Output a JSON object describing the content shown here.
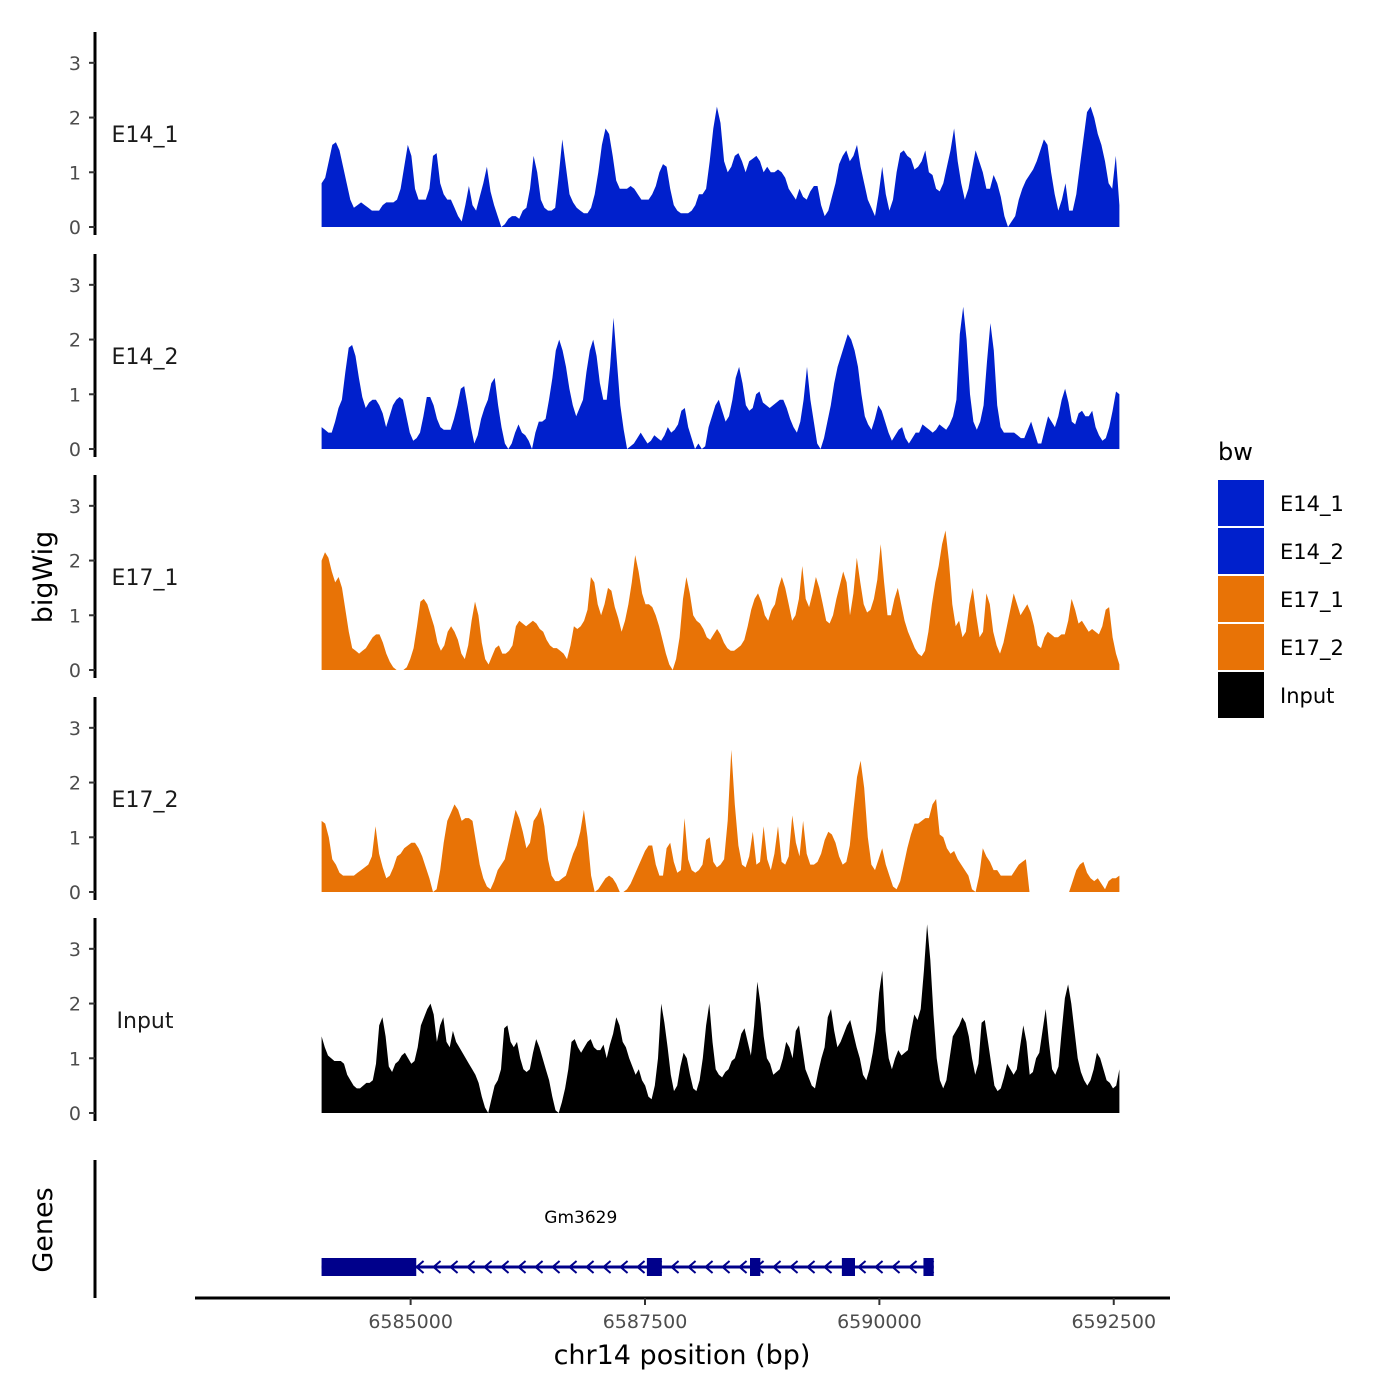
{
  "chart_data": {
    "type": "area",
    "chromosome": "chr14",
    "region": [
      6584050,
      6592560
    ],
    "xlabel": "chr14 position (bp)",
    "ylabel_signal": "bigWig",
    "ylabel_genes": "Genes",
    "x_ticks": [
      6585000,
      6587500,
      6590000,
      6592500
    ],
    "x_tick_labels": [
      "6585000",
      "6587500",
      "6590000",
      "6592500"
    ],
    "x_domain": [
      6582700,
      6593100
    ],
    "ylim": [
      0,
      3.6
    ],
    "y_ticks": [
      0,
      1,
      2,
      3
    ],
    "y_tick_labels": [
      "0",
      "1",
      "2",
      "3"
    ],
    "legend": {
      "title": "bw",
      "entries": [
        {
          "name": "E14_1",
          "color": "#0020CC"
        },
        {
          "name": "E14_2",
          "color": "#0020CC"
        },
        {
          "name": "E17_1",
          "color": "#E87306"
        },
        {
          "name": "E17_2",
          "color": "#E87306"
        },
        {
          "name": "Input",
          "color": "#000000"
        }
      ]
    },
    "series": [
      {
        "name": "E14_1",
        "color": "#0020CC",
        "values": [
          0.8,
          0.9,
          1.2,
          1.5,
          1.55,
          1.4,
          1.1,
          0.8,
          0.5,
          0.35,
          0.4,
          0.45,
          0.4,
          0.35,
          0.3,
          0.3,
          0.3,
          0.4,
          0.45,
          0.45,
          0.45,
          0.5,
          0.7,
          1.1,
          1.5,
          1.3,
          0.7,
          0.5,
          0.5,
          0.5,
          0.7,
          1.3,
          1.35,
          0.8,
          0.6,
          0.5,
          0.5,
          0.35,
          0.2,
          0.1,
          0.4,
          0.75,
          0.4,
          0.3,
          0.55,
          0.8,
          1.1,
          0.65,
          0.4,
          0.2,
          0.0,
          0.05,
          0.15,
          0.2,
          0.2,
          0.15,
          0.3,
          0.35,
          0.7,
          1.3,
          1.0,
          0.5,
          0.35,
          0.3,
          0.3,
          0.35,
          0.95,
          1.6,
          1.1,
          0.6,
          0.45,
          0.35,
          0.3,
          0.25,
          0.25,
          0.35,
          0.6,
          1.0,
          1.5,
          1.8,
          1.7,
          1.3,
          0.85,
          0.7,
          0.7,
          0.7,
          0.75,
          0.7,
          0.6,
          0.5,
          0.5,
          0.5,
          0.6,
          0.75,
          1.0,
          1.15,
          1.1,
          0.7,
          0.4,
          0.3,
          0.25,
          0.25,
          0.25,
          0.3,
          0.4,
          0.6,
          0.6,
          0.7,
          1.2,
          1.8,
          2.2,
          1.9,
          1.2,
          1.0,
          1.1,
          1.3,
          1.35,
          1.2,
          1.0,
          1.2,
          1.25,
          1.3,
          1.2,
          1.0,
          1.1,
          1.0,
          1.0,
          1.05,
          1.0,
          0.9,
          0.7,
          0.6,
          0.5,
          0.7,
          0.55,
          0.5,
          0.65,
          0.75,
          0.75,
          0.4,
          0.2,
          0.3,
          0.55,
          0.8,
          1.15,
          1.3,
          1.4,
          1.2,
          1.3,
          1.5,
          1.1,
          0.8,
          0.5,
          0.35,
          0.2,
          0.6,
          1.1,
          0.6,
          0.3,
          0.5,
          1.0,
          1.35,
          1.4,
          1.3,
          1.25,
          1.05,
          1.1,
          1.2,
          1.4,
          1.0,
          0.95,
          0.7,
          0.65,
          0.8,
          1.1,
          1.4,
          1.8,
          1.2,
          0.8,
          0.5,
          0.7,
          1.05,
          1.4,
          1.2,
          1.0,
          0.7,
          0.7,
          0.95,
          0.8,
          0.55,
          0.2,
          0.0,
          0.1,
          0.2,
          0.5,
          0.7,
          0.85,
          0.95,
          1.05,
          1.2,
          1.4,
          1.6,
          1.5,
          1.0,
          0.6,
          0.3,
          0.5,
          0.8,
          0.3,
          0.3,
          0.6,
          1.1,
          1.6,
          2.1,
          2.2,
          2.0,
          1.7,
          1.5,
          1.2,
          0.8,
          0.7,
          1.3,
          0.4
        ]
      },
      {
        "name": "E14_2",
        "color": "#0020CC",
        "values": [
          0.4,
          0.35,
          0.3,
          0.3,
          0.5,
          0.75,
          0.9,
          1.4,
          1.85,
          1.9,
          1.7,
          1.3,
          0.95,
          0.75,
          0.85,
          0.9,
          0.9,
          0.8,
          0.65,
          0.4,
          0.6,
          0.8,
          0.9,
          0.95,
          0.9,
          0.6,
          0.3,
          0.15,
          0.2,
          0.3,
          0.6,
          0.95,
          0.95,
          0.8,
          0.55,
          0.4,
          0.35,
          0.35,
          0.35,
          0.55,
          0.8,
          1.1,
          1.15,
          0.8,
          0.4,
          0.1,
          0.25,
          0.55,
          0.75,
          0.9,
          1.2,
          1.3,
          0.8,
          0.4,
          0.1,
          0.0,
          0.1,
          0.3,
          0.45,
          0.3,
          0.25,
          0.15,
          0.0,
          0.3,
          0.5,
          0.5,
          0.55,
          0.9,
          1.3,
          1.8,
          2.0,
          1.8,
          1.5,
          1.1,
          0.8,
          0.6,
          0.75,
          0.9,
          1.4,
          1.8,
          2.0,
          1.7,
          1.2,
          0.9,
          0.9,
          1.5,
          2.4,
          1.6,
          0.8,
          0.35,
          0.0,
          0.05,
          0.1,
          0.2,
          0.3,
          0.2,
          0.1,
          0.15,
          0.25,
          0.2,
          0.15,
          0.25,
          0.4,
          0.3,
          0.35,
          0.45,
          0.7,
          0.75,
          0.4,
          0.2,
          0.0,
          0.1,
          0.0,
          0.05,
          0.4,
          0.6,
          0.8,
          0.9,
          0.7,
          0.5,
          0.6,
          0.9,
          1.3,
          1.5,
          1.2,
          0.8,
          0.7,
          0.75,
          1.0,
          1.05,
          0.85,
          0.8,
          0.75,
          0.8,
          0.85,
          0.9,
          0.9,
          0.75,
          0.55,
          0.4,
          0.3,
          0.5,
          0.9,
          1.5,
          0.9,
          0.5,
          0.1,
          0.0,
          0.2,
          0.5,
          0.8,
          1.2,
          1.5,
          1.7,
          1.9,
          2.1,
          2.0,
          1.8,
          1.5,
          1.0,
          0.6,
          0.45,
          0.35,
          0.55,
          0.8,
          0.7,
          0.5,
          0.3,
          0.15,
          0.25,
          0.35,
          0.4,
          0.2,
          0.1,
          0.2,
          0.3,
          0.3,
          0.45,
          0.4,
          0.35,
          0.3,
          0.35,
          0.45,
          0.4,
          0.35,
          0.45,
          0.6,
          0.9,
          2.1,
          2.6,
          2.0,
          1.0,
          0.5,
          0.35,
          0.5,
          0.8,
          1.6,
          2.3,
          1.8,
          0.8,
          0.4,
          0.3,
          0.3,
          0.3,
          0.3,
          0.25,
          0.2,
          0.2,
          0.35,
          0.5,
          0.3,
          0.1,
          0.1,
          0.35,
          0.6,
          0.5,
          0.4,
          0.6,
          0.9,
          1.1,
          0.85,
          0.5,
          0.45,
          0.65,
          0.7,
          0.6,
          0.6,
          0.7,
          0.4,
          0.25,
          0.15,
          0.2,
          0.4,
          0.7,
          1.05,
          1.0
        ]
      },
      {
        "name": "E17_1",
        "color": "#E87306",
        "values": [
          2.0,
          2.15,
          2.05,
          1.8,
          1.6,
          1.7,
          1.5,
          1.1,
          0.7,
          0.4,
          0.35,
          0.3,
          0.35,
          0.4,
          0.5,
          0.6,
          0.65,
          0.65,
          0.5,
          0.3,
          0.15,
          0.05,
          0.0,
          0.0,
          0.0,
          0.05,
          0.2,
          0.4,
          0.8,
          1.25,
          1.3,
          1.2,
          1.0,
          0.8,
          0.5,
          0.35,
          0.45,
          0.7,
          0.8,
          0.7,
          0.55,
          0.3,
          0.2,
          0.45,
          0.9,
          1.25,
          1.0,
          0.5,
          0.2,
          0.1,
          0.25,
          0.4,
          0.45,
          0.3,
          0.3,
          0.35,
          0.45,
          0.8,
          0.9,
          0.85,
          0.8,
          0.85,
          0.9,
          0.85,
          0.75,
          0.7,
          0.55,
          0.45,
          0.4,
          0.4,
          0.35,
          0.3,
          0.2,
          0.45,
          0.8,
          0.75,
          0.8,
          0.9,
          1.1,
          1.7,
          1.6,
          1.2,
          1.0,
          1.2,
          1.5,
          1.45,
          1.15,
          0.95,
          0.7,
          0.9,
          1.2,
          1.6,
          2.1,
          1.8,
          1.4,
          1.2,
          1.2,
          1.15,
          1.0,
          0.8,
          0.55,
          0.3,
          0.1,
          0.0,
          0.2,
          0.6,
          1.3,
          1.7,
          1.4,
          1.0,
          0.9,
          0.85,
          0.75,
          0.6,
          0.55,
          0.65,
          0.75,
          0.65,
          0.5,
          0.4,
          0.35,
          0.35,
          0.4,
          0.45,
          0.55,
          0.8,
          1.1,
          1.3,
          1.4,
          1.25,
          1.0,
          0.9,
          1.1,
          1.2,
          1.5,
          1.7,
          1.5,
          1.2,
          0.9,
          1.0,
          1.3,
          1.9,
          1.3,
          1.15,
          1.4,
          1.7,
          1.5,
          1.2,
          0.9,
          0.85,
          1.0,
          1.3,
          1.55,
          1.8,
          1.6,
          1.0,
          1.4,
          2.05,
          1.6,
          1.2,
          1.05,
          1.1,
          1.3,
          1.65,
          2.3,
          1.6,
          1.0,
          1.0,
          1.3,
          1.5,
          1.2,
          0.9,
          0.7,
          0.55,
          0.4,
          0.3,
          0.25,
          0.35,
          0.7,
          1.2,
          1.6,
          1.9,
          2.3,
          2.55,
          2.0,
          1.2,
          0.8,
          0.9,
          0.6,
          0.7,
          1.2,
          1.5,
          1.0,
          0.6,
          0.7,
          1.4,
          1.2,
          0.7,
          0.45,
          0.3,
          0.5,
          0.8,
          1.1,
          1.4,
          1.2,
          1.0,
          1.1,
          1.2,
          1.05,
          0.8,
          0.45,
          0.4,
          0.6,
          0.7,
          0.65,
          0.6,
          0.6,
          0.65,
          0.65,
          0.9,
          1.3,
          1.1,
          0.85,
          0.9,
          0.8,
          0.7,
          0.75,
          0.7,
          0.65,
          0.8,
          1.1,
          1.15,
          0.6,
          0.3,
          0.1
        ]
      },
      {
        "name": "E17_2",
        "color": "#E87306",
        "values": [
          1.3,
          1.25,
          1.0,
          0.6,
          0.5,
          0.35,
          0.3,
          0.3,
          0.3,
          0.3,
          0.35,
          0.4,
          0.45,
          0.5,
          0.65,
          1.2,
          0.7,
          0.45,
          0.25,
          0.3,
          0.45,
          0.65,
          0.7,
          0.8,
          0.85,
          0.9,
          0.9,
          0.8,
          0.65,
          0.45,
          0.25,
          0.0,
          0.05,
          0.4,
          0.9,
          1.3,
          1.45,
          1.6,
          1.5,
          1.3,
          1.35,
          1.35,
          1.3,
          0.9,
          0.5,
          0.25,
          0.1,
          0.05,
          0.2,
          0.4,
          0.5,
          0.6,
          0.9,
          1.2,
          1.5,
          1.35,
          1.1,
          0.8,
          0.9,
          1.3,
          1.4,
          1.55,
          1.2,
          0.6,
          0.3,
          0.2,
          0.2,
          0.25,
          0.3,
          0.5,
          0.7,
          0.85,
          1.1,
          1.5,
          1.0,
          0.3,
          0.0,
          0.05,
          0.15,
          0.25,
          0.3,
          0.25,
          0.15,
          0.0,
          0.0,
          0.05,
          0.15,
          0.3,
          0.45,
          0.6,
          0.75,
          0.85,
          0.85,
          0.5,
          0.3,
          0.3,
          0.8,
          0.9,
          0.55,
          0.35,
          0.4,
          1.35,
          0.6,
          0.4,
          0.35,
          0.4,
          0.5,
          0.95,
          1.0,
          0.55,
          0.45,
          0.5,
          0.6,
          1.3,
          2.6,
          1.6,
          0.85,
          0.5,
          0.45,
          0.65,
          1.1,
          0.5,
          0.55,
          1.2,
          0.6,
          0.4,
          0.7,
          1.2,
          0.55,
          0.5,
          0.65,
          1.4,
          0.9,
          0.65,
          1.3,
          0.7,
          0.5,
          0.5,
          0.55,
          0.7,
          0.95,
          1.1,
          1.05,
          0.9,
          0.65,
          0.5,
          0.55,
          0.85,
          1.5,
          2.1,
          2.4,
          1.9,
          1.0,
          0.5,
          0.4,
          0.6,
          0.8,
          0.5,
          0.3,
          0.1,
          0.05,
          0.2,
          0.5,
          0.8,
          1.05,
          1.25,
          1.25,
          1.3,
          1.35,
          1.35,
          1.6,
          1.7,
          1.05,
          1.0,
          0.8,
          0.7,
          0.75,
          0.6,
          0.5,
          0.4,
          0.3,
          0.05,
          0.0,
          0.3,
          0.8,
          0.65,
          0.55,
          0.4,
          0.4,
          0.3,
          0.3,
          0.3,
          0.3,
          0.4,
          0.5,
          0.55,
          0.6,
          0.0,
          0.0,
          0.0,
          0.0,
          0.0,
          0.0,
          0.0,
          0.0,
          0.0,
          0.0,
          0.0,
          0.0,
          0.2,
          0.4,
          0.5,
          0.55,
          0.35,
          0.25,
          0.2,
          0.25,
          0.15,
          0.05,
          0.2,
          0.25,
          0.25,
          0.3
        ]
      },
      {
        "name": "Input",
        "color": "#000000",
        "values": [
          1.4,
          1.2,
          1.05,
          1.0,
          0.95,
          0.95,
          0.95,
          0.9,
          0.7,
          0.6,
          0.5,
          0.45,
          0.45,
          0.5,
          0.55,
          0.55,
          0.6,
          0.9,
          1.6,
          1.75,
          1.4,
          0.85,
          0.75,
          0.9,
          0.95,
          1.05,
          1.1,
          1.0,
          0.9,
          0.95,
          1.2,
          1.6,
          1.75,
          1.9,
          2.0,
          1.8,
          1.3,
          1.6,
          1.75,
          1.3,
          1.2,
          1.5,
          1.3,
          1.2,
          1.1,
          1.0,
          0.9,
          0.8,
          0.7,
          0.55,
          0.3,
          0.1,
          0.0,
          0.25,
          0.5,
          0.6,
          0.8,
          1.55,
          1.6,
          1.3,
          1.2,
          1.3,
          1.0,
          0.8,
          0.75,
          0.8,
          1.1,
          1.35,
          1.2,
          1.0,
          0.8,
          0.6,
          0.3,
          0.05,
          0.0,
          0.2,
          0.45,
          0.8,
          1.3,
          1.35,
          1.2,
          1.1,
          1.2,
          1.3,
          1.35,
          1.2,
          1.15,
          1.15,
          1.25,
          1.0,
          1.25,
          1.45,
          1.75,
          1.6,
          1.3,
          1.2,
          1.0,
          0.85,
          0.7,
          0.8,
          0.6,
          0.5,
          0.3,
          0.25,
          0.5,
          1.0,
          2.0,
          1.65,
          1.2,
          0.7,
          0.4,
          0.5,
          0.85,
          1.1,
          1.0,
          0.7,
          0.45,
          0.4,
          0.6,
          1.0,
          1.6,
          2.0,
          1.3,
          0.8,
          0.7,
          0.65,
          0.75,
          0.8,
          0.95,
          1.0,
          1.2,
          1.45,
          1.55,
          1.3,
          1.05,
          1.6,
          2.4,
          2.0,
          1.4,
          1.0,
          0.9,
          0.7,
          0.75,
          0.8,
          1.0,
          1.3,
          1.2,
          1.0,
          1.5,
          1.6,
          1.2,
          0.8,
          0.65,
          0.5,
          0.45,
          0.75,
          1.0,
          1.2,
          1.75,
          1.9,
          1.5,
          1.2,
          1.3,
          1.45,
          1.6,
          1.7,
          1.45,
          1.2,
          1.0,
          0.7,
          0.6,
          0.8,
          1.1,
          1.5,
          2.2,
          2.6,
          1.5,
          1.0,
          0.8,
          1.0,
          1.15,
          1.05,
          1.1,
          1.15,
          1.5,
          1.8,
          1.7,
          1.9,
          2.6,
          3.45,
          2.8,
          1.8,
          1.0,
          0.6,
          0.45,
          0.6,
          1.0,
          1.4,
          1.5,
          1.6,
          1.75,
          1.65,
          1.4,
          1.0,
          0.7,
          0.9,
          1.65,
          1.7,
          1.3,
          0.9,
          0.5,
          0.4,
          0.45,
          0.65,
          0.9,
          0.8,
          0.7,
          0.8,
          1.2,
          1.6,
          1.3,
          0.7,
          0.75,
          1.0,
          1.1,
          1.5,
          1.9,
          1.3,
          0.8,
          0.7,
          0.85,
          1.5,
          2.1,
          2.35,
          2.0,
          1.5,
          1.0,
          0.75,
          0.6,
          0.5,
          0.6,
          0.8,
          1.1,
          1.0,
          0.8,
          0.6,
          0.55,
          0.45,
          0.5,
          0.8
        ]
      }
    ],
    "gene": {
      "name": "Gm3629",
      "strand": "-",
      "start": 6584050,
      "end": 6590580,
      "exons": [
        [
          6584050,
          6585060
        ],
        [
          6587520,
          6587680
        ],
        [
          6588620,
          6588730
        ],
        [
          6589600,
          6589740
        ],
        [
          6590470,
          6590580
        ]
      ]
    }
  }
}
